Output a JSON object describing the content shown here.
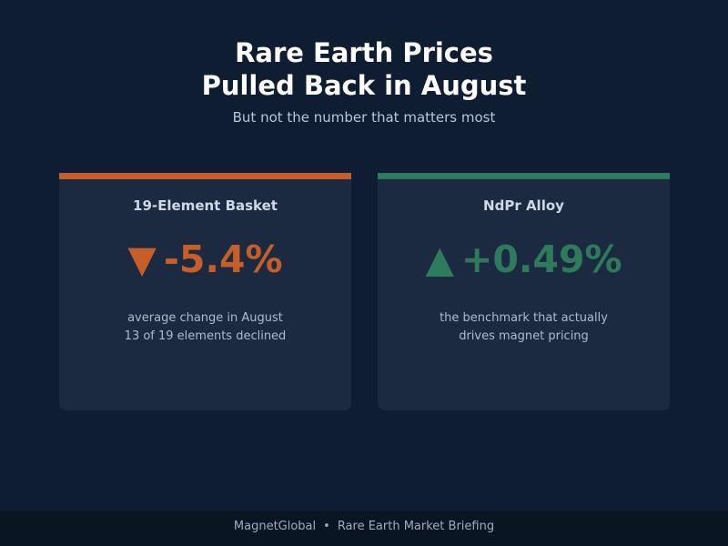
{
  "header": {
    "title_line1": "Rare Earth Prices",
    "title_line2": "Pulled Back in August",
    "subtitle": "But not the number that matters most"
  },
  "cards": [
    {
      "heading": "19-Element Basket",
      "arrow": "▼",
      "value": "-5.4%",
      "note_line1": "average change in August",
      "note_line2": "13 of 19 elements declined",
      "accent_color": "#c65e2a"
    },
    {
      "heading": "NdPr Alloy",
      "arrow": "▲",
      "value": "+0.49%",
      "note_line1": "the benchmark that actually",
      "note_line2": "drives magnet pricing",
      "accent_color": "#2e7b5b"
    }
  ],
  "footer": {
    "brand": "MagnetGlobal",
    "separator": "•",
    "label": "Rare Earth Market Briefing"
  },
  "colors": {
    "background": "#0f1d33",
    "card": "#1b2a40",
    "down": "#c65e2a",
    "up": "#2e7b5b"
  }
}
